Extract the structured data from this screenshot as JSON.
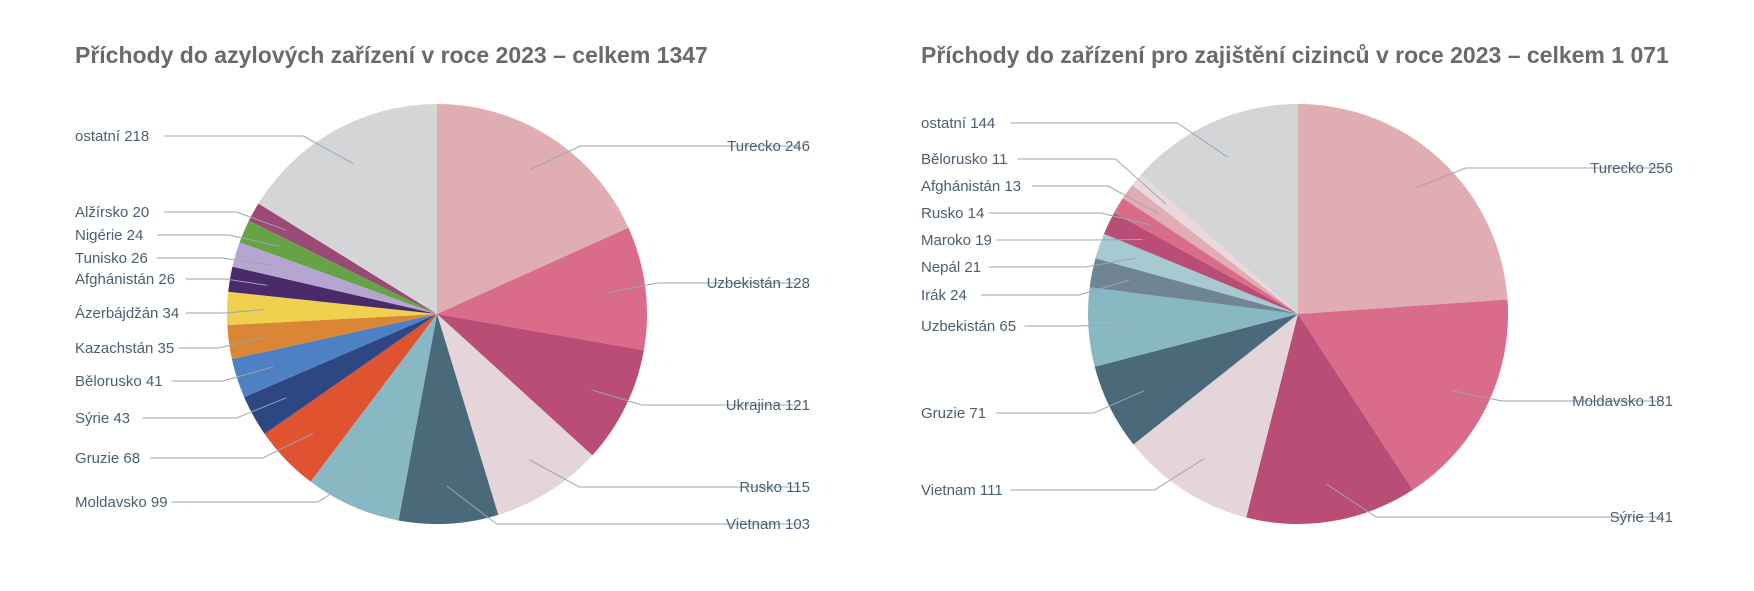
{
  "chart_data": [
    {
      "type": "pie",
      "title": "Příchody do azylových zařízení v roce 2023 – celkem 1347",
      "slices": [
        {
          "label": "Turecko 246",
          "value": 246,
          "color": "#e0adb2"
        },
        {
          "label": "Uzbekistán 128",
          "value": 128,
          "color": "#d96c8a"
        },
        {
          "label": "Ukrajina 121",
          "value": 121,
          "color": "#b94d75"
        },
        {
          "label": "Rusko 115",
          "value": 115,
          "color": "#e5d5d9"
        },
        {
          "label": "Vietnam 103",
          "value": 103,
          "color": "#4a6a7b"
        },
        {
          "label": "Moldavsko 99",
          "value": 99,
          "color": "#87b8c4"
        },
        {
          "label": "Gruzie 68",
          "value": 68,
          "color": "#e05331"
        },
        {
          "label": "Sýrie 43",
          "value": 43,
          "color": "#2c4782"
        },
        {
          "label": "Bělorusko 41",
          "value": 41,
          "color": "#4e80c4"
        },
        {
          "label": "Kazachstán 35",
          "value": 35,
          "color": "#db8634"
        },
        {
          "label": "Ázerbájdžán 34",
          "value": 34,
          "color": "#efd04f"
        },
        {
          "label": "Afghánistán 26",
          "value": 26,
          "color": "#4a2a68"
        },
        {
          "label": "Tunisko 26",
          "value": 26,
          "color": "#b4a6d1"
        },
        {
          "label": "Nigérie 24",
          "value": 24,
          "color": "#66a344"
        },
        {
          "label": "Alžírsko 20",
          "value": 20,
          "color": "#9b4a78"
        },
        {
          "label": "ostatní 218",
          "value": 218,
          "color": "#d4d5d7"
        }
      ]
    },
    {
      "type": "pie",
      "title": "Příchody do zařízení pro zajištění cizinců v roce 2023 – celkem 1 071",
      "slices": [
        {
          "label": "Turecko 256",
          "value": 256,
          "color": "#e0adb2"
        },
        {
          "label": "Moldavsko 181",
          "value": 181,
          "color": "#d96c8a"
        },
        {
          "label": "Sýrie 141",
          "value": 141,
          "color": "#b94d75"
        },
        {
          "label": "Vietnam 111",
          "value": 111,
          "color": "#e5d5d9"
        },
        {
          "label": "Gruzie 71",
          "value": 71,
          "color": "#4a6a7b"
        },
        {
          "label": "Uzbekistán 65",
          "value": 65,
          "color": "#87b8c4"
        },
        {
          "label": "Irák 24",
          "value": 24,
          "color": "#6f8593"
        },
        {
          "label": "Nepál 21",
          "value": 21,
          "color": "#a6c9d2"
        },
        {
          "label": "Maroko 19",
          "value": 19,
          "color": "#b94d75"
        },
        {
          "label": "Rusko 14",
          "value": 14,
          "color": "#d96c8a"
        },
        {
          "label": "Afghánistán 13",
          "value": 13,
          "color": "#e0adb2"
        },
        {
          "label": "Bělorusko 11",
          "value": 11,
          "color": "#ead9dc"
        },
        {
          "label": "ostatní 144",
          "value": 144,
          "color": "#d4d5d7"
        }
      ]
    }
  ]
}
